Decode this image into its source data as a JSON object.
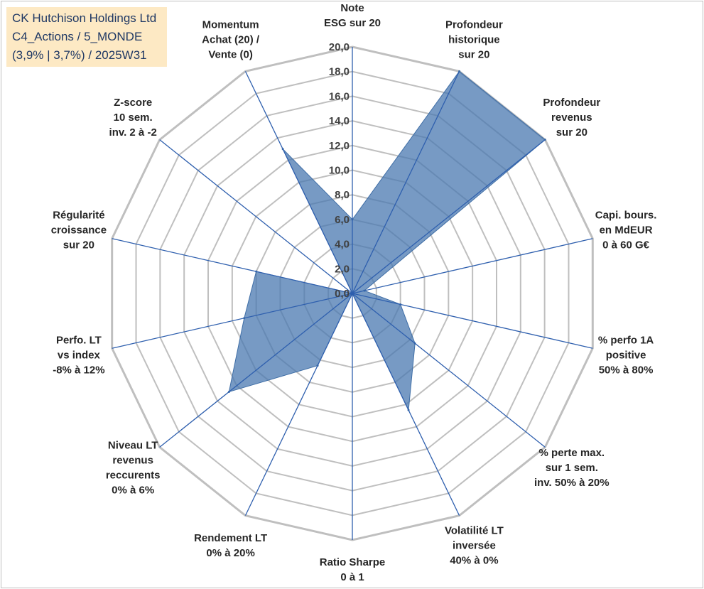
{
  "info": {
    "line1": "CK Hutchison Holdings Ltd",
    "line2": "C4_Actions / 5_MONDE",
    "line3": "(3,9% | 3,7%) / 2025W31"
  },
  "colors": {
    "fill": "#4a78b0",
    "spoke": "#2e5fae",
    "grid": "#bfbfbf",
    "info_bg": "#fde9c4",
    "info_text": "#1f3864"
  },
  "chart_data": {
    "type": "radar",
    "rlim": [
      0,
      20
    ],
    "tick_labels": [
      "0,0",
      "2,0",
      "4,0",
      "6,0",
      "8,0",
      "10,0",
      "12,0",
      "14,0",
      "16,0",
      "18,0",
      "20,0"
    ],
    "grid": true,
    "axes": [
      {
        "label": [
          "Note",
          "ESG sur 20"
        ],
        "value": 6.0
      },
      {
        "label": [
          "Profondeur",
          "historique",
          "sur 20"
        ],
        "value": 20.0
      },
      {
        "label": [
          "Profondeur",
          "revenus",
          "sur 20"
        ],
        "value": 20.0
      },
      {
        "label": [
          "Capi. bours.",
          "en MdEUR",
          "0 à 60 G€"
        ],
        "value": 1.0
      },
      {
        "label": [
          "% perfo 1A",
          "positive",
          "50% à 80%"
        ],
        "value": 4.0
      },
      {
        "label": [
          "% perte max.",
          "sur 1 sem.",
          "inv. 50% à 20%"
        ],
        "value": 6.5
      },
      {
        "label": [
          "Volatilité LT",
          "inversée",
          "40% à 0%"
        ],
        "value": 10.5
      },
      {
        "label": [
          "Ratio Sharpe",
          "0 à 1"
        ],
        "value": 0.0
      },
      {
        "label": [
          "Rendement LT",
          "0% à 20%"
        ],
        "value": 6.5
      },
      {
        "label": [
          "Niveau LT",
          "revenus",
          "reccurents",
          "0% à 6%"
        ],
        "value": 12.8
      },
      {
        "label": [
          "Perfo. LT",
          "vs index",
          "-8% à 12%"
        ],
        "value": 9.0
      },
      {
        "label": [
          "Régularité",
          "croissance",
          "sur 20"
        ],
        "value": 8.0
      },
      {
        "label": [
          "Z-score",
          "10 sem.",
          "inv. 2 à -2"
        ],
        "value": 0.0
      },
      {
        "label": [
          "Momentum",
          "Achat (20) /",
          "Vente (0)"
        ],
        "value": 13.0
      }
    ]
  }
}
